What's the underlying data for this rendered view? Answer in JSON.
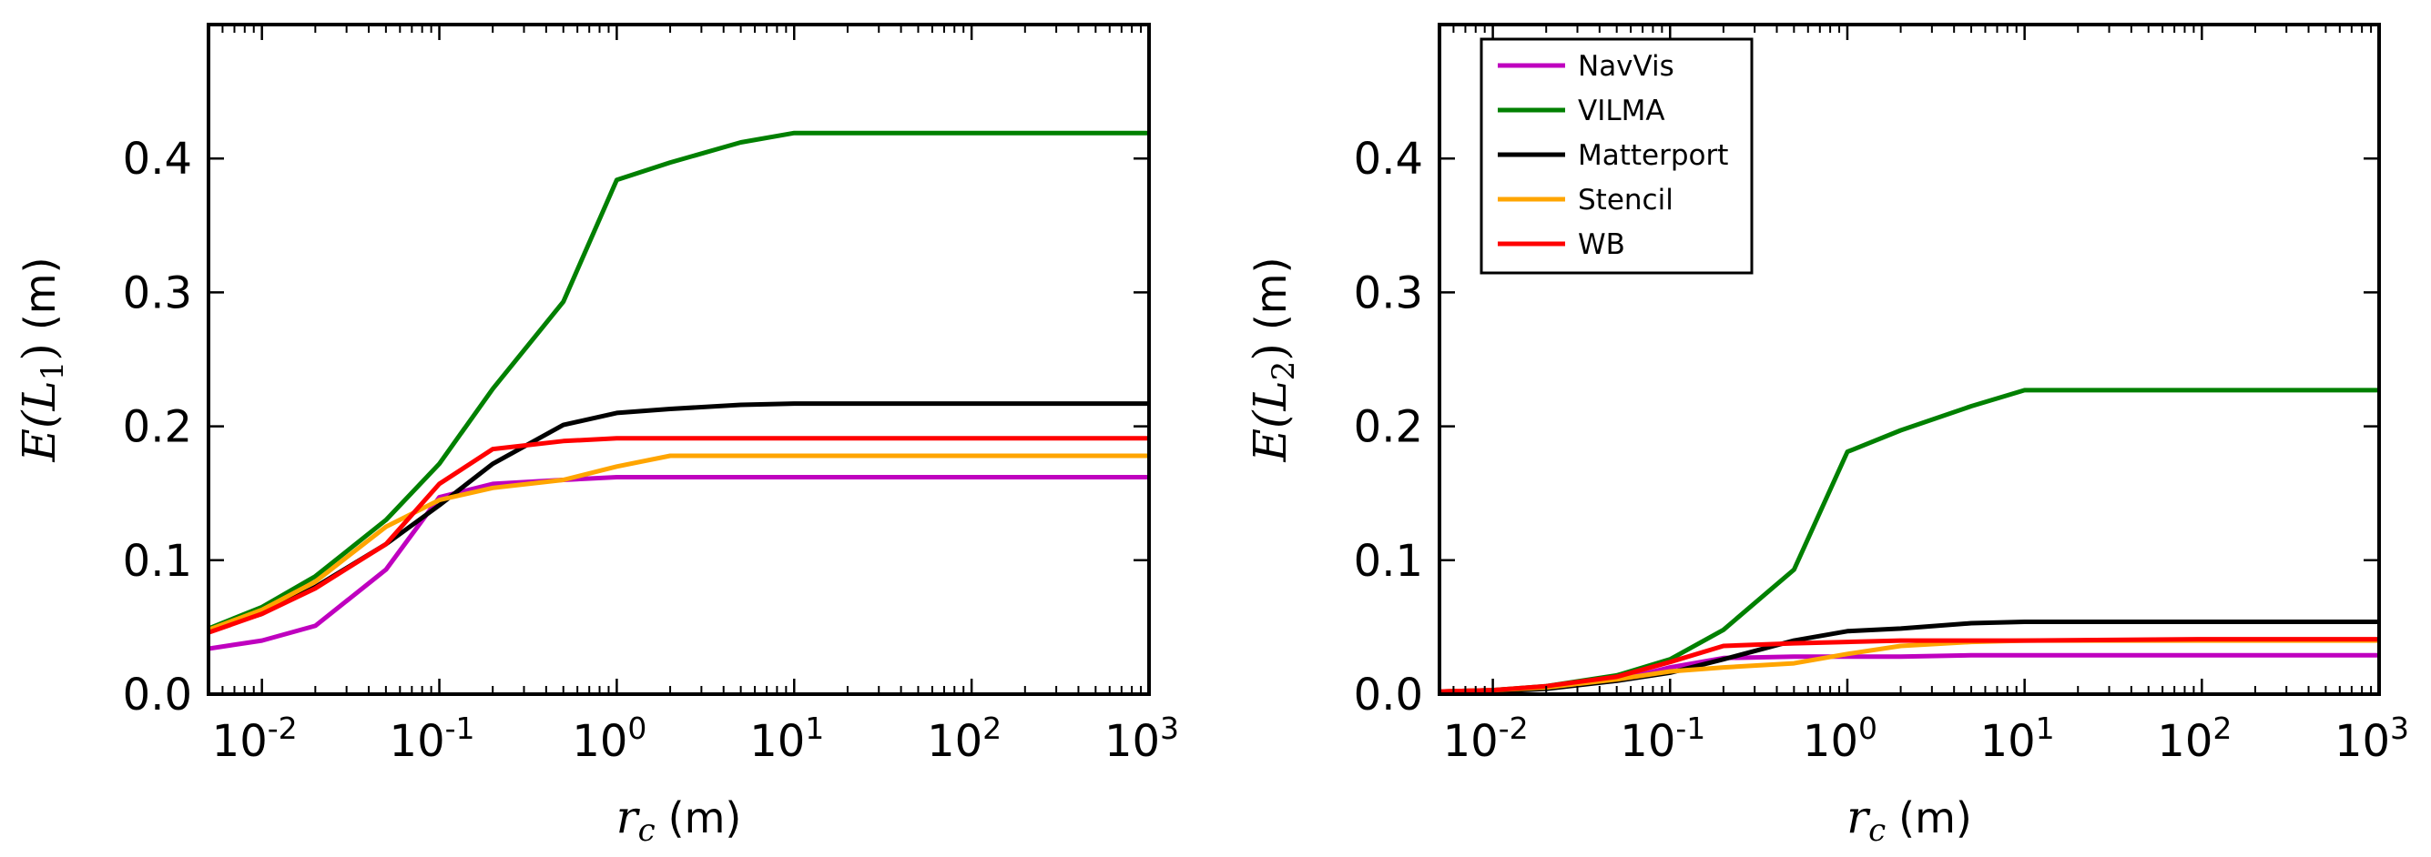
{
  "chart_data": [
    {
      "type": "line",
      "xscale": "log",
      "xlim": [
        0.005,
        1000
      ],
      "ylim": [
        0,
        0.5
      ],
      "xticks": [
        {
          "base": "10",
          "exp": "-2",
          "value": 0.01
        },
        {
          "base": "10",
          "exp": "-1",
          "value": 0.1
        },
        {
          "base": "10",
          "exp": "0",
          "value": 1
        },
        {
          "base": "10",
          "exp": "1",
          "value": 10
        },
        {
          "base": "10",
          "exp": "2",
          "value": 100
        },
        {
          "base": "10",
          "exp": "3",
          "value": 1000
        }
      ],
      "yticks": [
        {
          "label": "0.0",
          "value": 0.0
        },
        {
          "label": "0.1",
          "value": 0.1
        },
        {
          "label": "0.2",
          "value": 0.2
        },
        {
          "label": "0.3",
          "value": 0.3
        },
        {
          "label": "0.4",
          "value": 0.4
        }
      ],
      "xlabel": {
        "var": "r",
        "sub": "c",
        "unit": "(m)"
      },
      "ylabel": {
        "main": "E(L",
        "sub": "1",
        "close": ")",
        "unit": "(m)"
      },
      "legend": false,
      "x": [
        0.005,
        0.01,
        0.02,
        0.05,
        0.1,
        0.2,
        0.5,
        1,
        2,
        5,
        10,
        100,
        1000
      ],
      "series": [
        {
          "name": "NavVis",
          "color": "#bf00bf",
          "values": [
            0.034,
            0.04,
            0.051,
            0.093,
            0.147,
            0.157,
            0.16,
            0.162,
            0.162,
            0.162,
            0.162,
            0.162,
            0.162
          ]
        },
        {
          "name": "VILMA",
          "color": "#008000",
          "values": [
            0.049,
            0.065,
            0.088,
            0.13,
            0.172,
            0.228,
            0.293,
            0.384,
            0.397,
            0.412,
            0.419,
            0.419,
            0.419
          ]
        },
        {
          "name": "Matterport",
          "color": "#000000",
          "values": [
            0.047,
            0.06,
            0.08,
            0.112,
            0.141,
            0.172,
            0.201,
            0.21,
            0.213,
            0.216,
            0.217,
            0.217,
            0.217
          ]
        },
        {
          "name": "Stencil",
          "color": "#ffa500",
          "values": [
            0.048,
            0.063,
            0.084,
            0.125,
            0.145,
            0.154,
            0.16,
            0.17,
            0.178,
            0.178,
            0.178,
            0.178,
            0.178
          ]
        },
        {
          "name": "WB",
          "color": "#ff0000",
          "values": [
            0.046,
            0.06,
            0.079,
            0.112,
            0.157,
            0.183,
            0.189,
            0.191,
            0.191,
            0.191,
            0.191,
            0.191,
            0.191
          ]
        }
      ]
    },
    {
      "type": "line",
      "xscale": "log",
      "xlim": [
        0.005,
        1000
      ],
      "ylim": [
        0,
        0.5
      ],
      "xticks": [
        {
          "base": "10",
          "exp": "-2",
          "value": 0.01
        },
        {
          "base": "10",
          "exp": "-1",
          "value": 0.1
        },
        {
          "base": "10",
          "exp": "0",
          "value": 1
        },
        {
          "base": "10",
          "exp": "1",
          "value": 10
        },
        {
          "base": "10",
          "exp": "2",
          "value": 100
        },
        {
          "base": "10",
          "exp": "3",
          "value": 1000
        }
      ],
      "yticks": [
        {
          "label": "0.0",
          "value": 0.0
        },
        {
          "label": "0.1",
          "value": 0.1
        },
        {
          "label": "0.2",
          "value": 0.2
        },
        {
          "label": "0.3",
          "value": 0.3
        },
        {
          "label": "0.4",
          "value": 0.4
        }
      ],
      "xlabel": {
        "var": "r",
        "sub": "c",
        "unit": "(m)"
      },
      "ylabel": {
        "main": "E(L",
        "sub": "2",
        "close": ")",
        "unit": "(m)"
      },
      "legend": true,
      "legend_position": "top-left",
      "x": [
        0.005,
        0.01,
        0.02,
        0.05,
        0.1,
        0.2,
        0.5,
        1,
        2,
        5,
        10,
        100,
        1000
      ],
      "series": [
        {
          "name": "NavVis",
          "color": "#bf00bf",
          "values": [
            0.002,
            0.003,
            0.005,
            0.01,
            0.02,
            0.027,
            0.028,
            0.028,
            0.028,
            0.029,
            0.029,
            0.029,
            0.029
          ]
        },
        {
          "name": "VILMA",
          "color": "#008000",
          "values": [
            0.002,
            0.003,
            0.006,
            0.014,
            0.026,
            0.048,
            0.093,
            0.181,
            0.197,
            0.215,
            0.227,
            0.227,
            0.227
          ]
        },
        {
          "name": "Matterport",
          "color": "#000000",
          "values": [
            0.001,
            0.002,
            0.004,
            0.01,
            0.016,
            0.026,
            0.04,
            0.047,
            0.049,
            0.053,
            0.054,
            0.054,
            0.054
          ]
        },
        {
          "name": "Stencil",
          "color": "#ffa500",
          "values": [
            0.002,
            0.003,
            0.005,
            0.011,
            0.017,
            0.02,
            0.023,
            0.03,
            0.036,
            0.039,
            0.04,
            0.04,
            0.04
          ]
        },
        {
          "name": "WB",
          "color": "#ff0000",
          "values": [
            0.002,
            0.003,
            0.006,
            0.013,
            0.024,
            0.036,
            0.038,
            0.039,
            0.04,
            0.04,
            0.04,
            0.041,
            0.041
          ]
        }
      ]
    }
  ]
}
